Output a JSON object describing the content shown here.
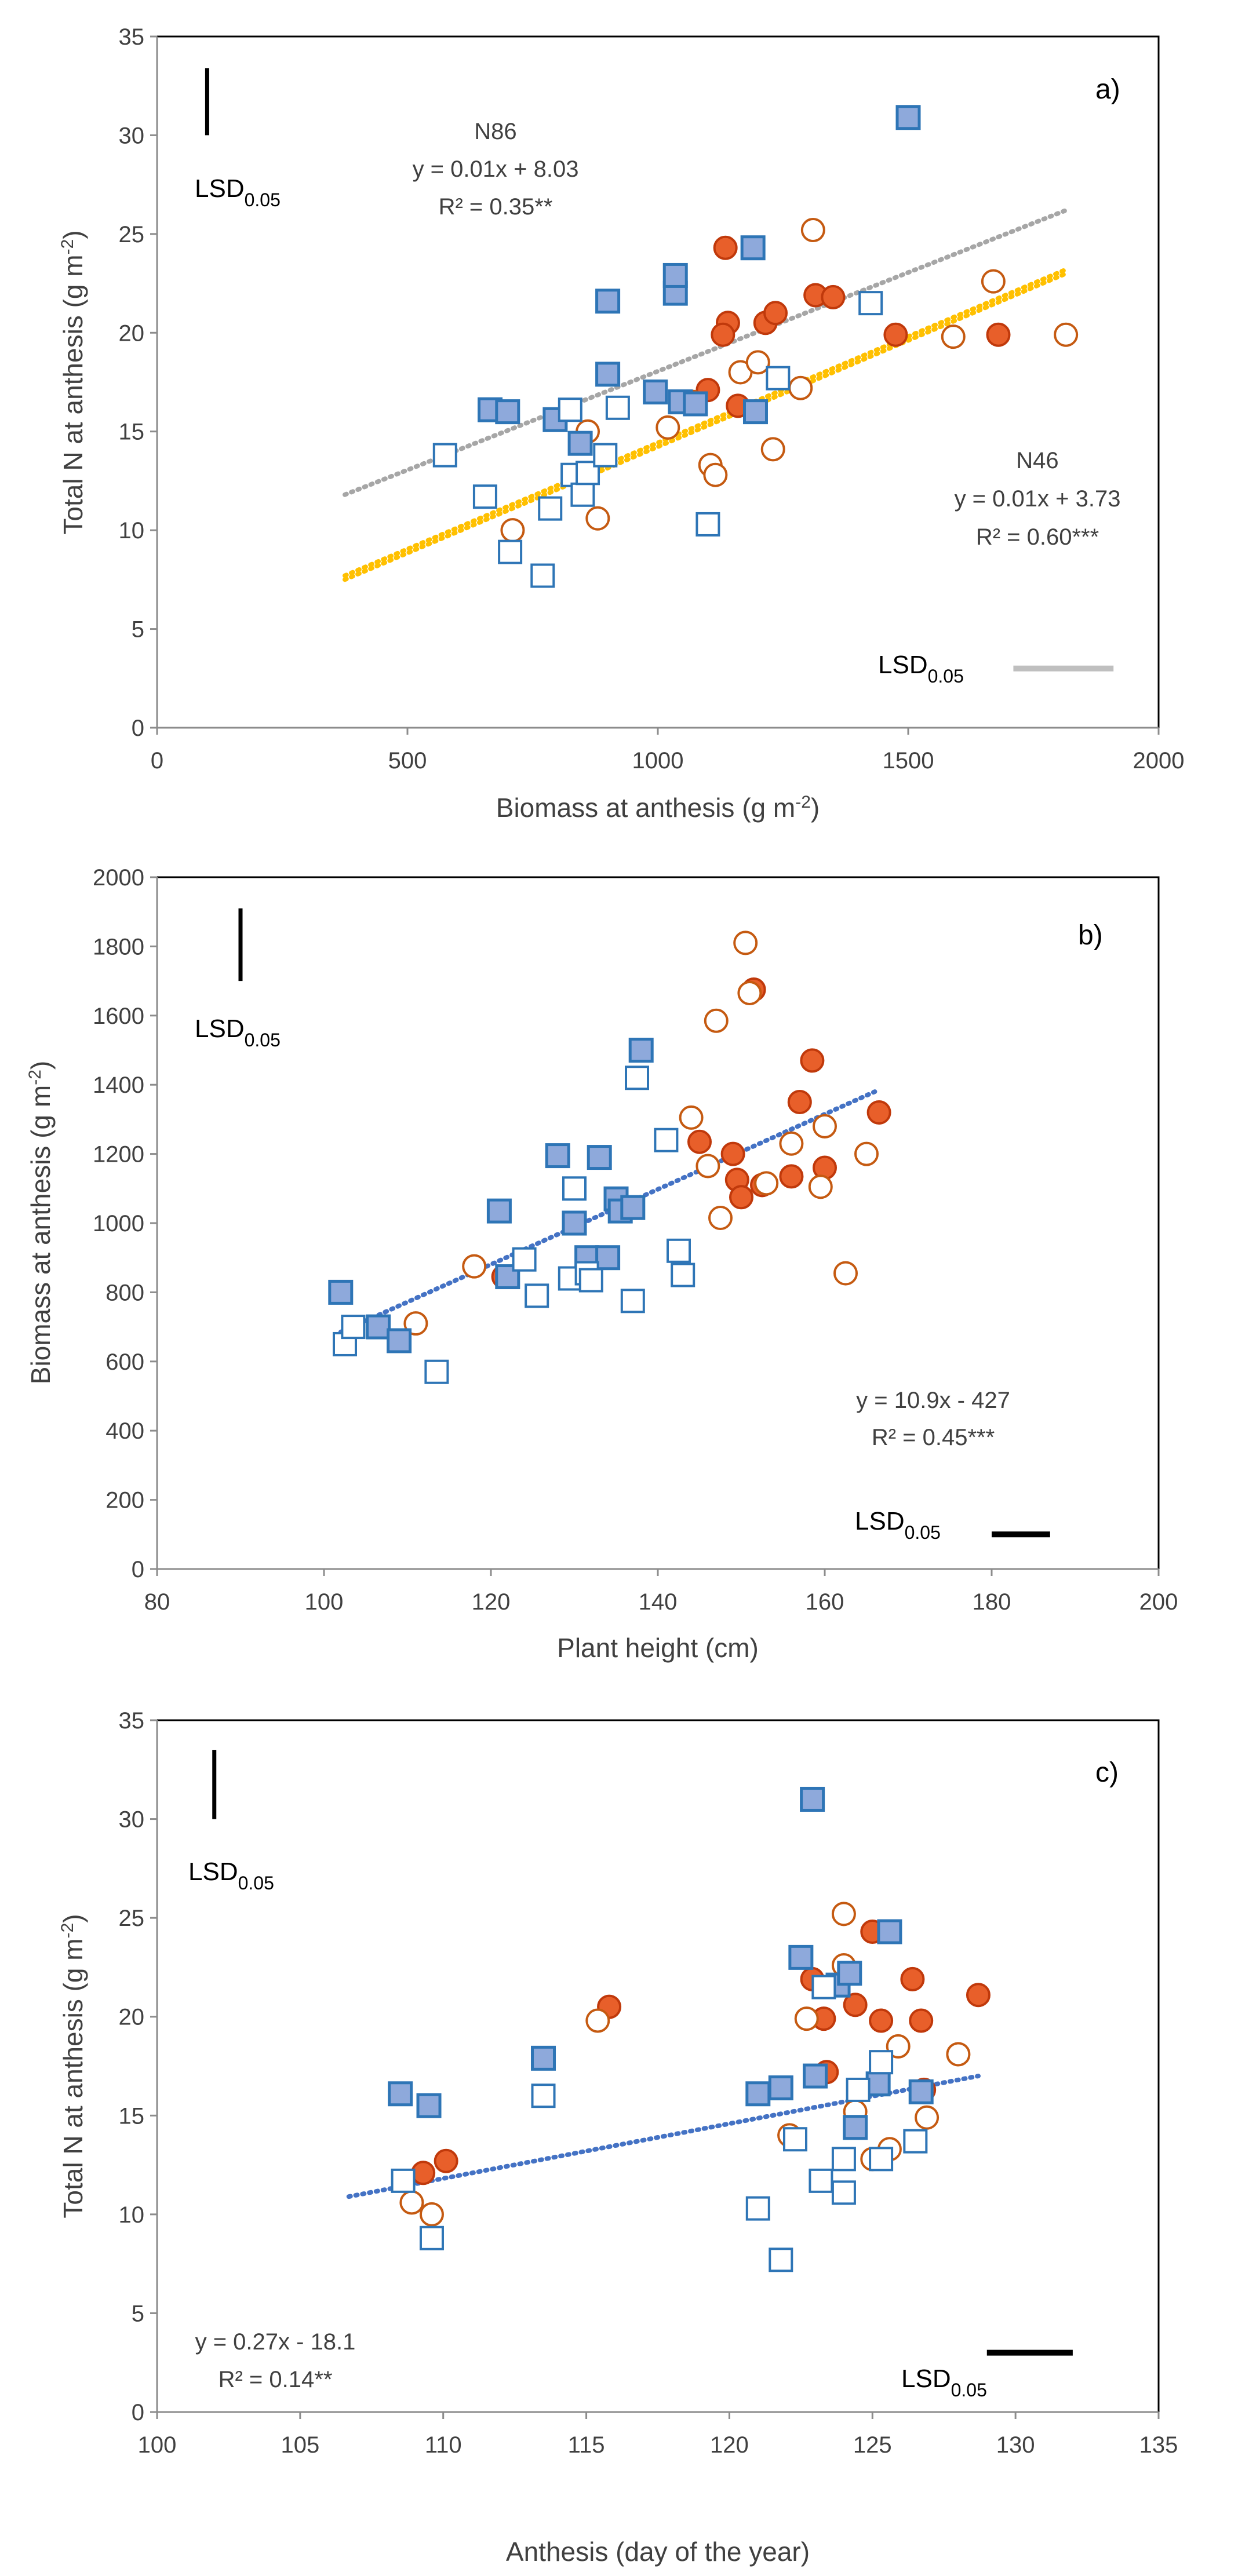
{
  "colors": {
    "red_fill": "#E85F2A",
    "red_stroke": "#C0390B",
    "red_open": "#C55A11",
    "blue_fill": "#8EA9DB",
    "blue_stroke": "#2E75B6",
    "blue_open": "#2E75B6",
    "trend_blue": "#4472C4",
    "trend_grey": "#A6A6A6",
    "trend_yellow": "#FFC000",
    "lsd_grey": "#BFBFBF"
  },
  "lsd": {
    "main": "LSD",
    "sub": "0.05"
  },
  "chart_data": [
    {
      "type": "scatter",
      "panel_label": "a)",
      "xlabel": "Biomass at anthesis (g m",
      "xlabel_sup": "-2",
      "xlabel_end": ")",
      "ylabel": "Total N at anthesis (g m",
      "ylabel_sup": "-2",
      "ylabel_end": ")",
      "xlim": [
        0,
        2000
      ],
      "ylim": [
        0,
        35
      ],
      "xticks": [
        0,
        500,
        1000,
        1500,
        2000
      ],
      "yticks": [
        0,
        5,
        10,
        15,
        20,
        25,
        30,
        35
      ],
      "annotations": [
        {
          "lines": [
            "N86",
            "y = 0.01x + 8.03",
            "R² = 0.35**"
          ]
        },
        {
          "lines": [
            "N46",
            "y = 0.01x + 3.73",
            "R² = 0.60***"
          ]
        }
      ],
      "trendlines": [
        {
          "color": "trend_grey",
          "x": [
            375,
            1815
          ],
          "y": [
            11.8,
            26.2
          ]
        },
        {
          "color": "trend_yellow",
          "x": [
            375,
            1815
          ],
          "y": [
            7.7,
            23.2
          ]
        },
        {
          "color": "trend_yellow",
          "x": [
            375,
            1815
          ],
          "y": [
            7.5,
            23.0
          ]
        }
      ],
      "lsd_vertical": {
        "x": 100,
        "y": [
          30.0,
          33.4
        ]
      },
      "lsd_horizontal": {
        "x": [
          1710,
          1910
        ],
        "y": 3.0
      },
      "series": [
        {
          "marker": "circle",
          "style": "red_filled",
          "points": [
            [
              1135,
              24.3
            ],
            [
              1140,
              20.5
            ],
            [
              1130,
              19.9
            ],
            [
              1100,
              17.1
            ],
            [
              1160,
              16.3
            ],
            [
              1215,
              20.5
            ],
            [
              1235,
              21.0
            ],
            [
              1315,
              21.9
            ],
            [
              1350,
              21.8
            ],
            [
              1475,
              19.9
            ],
            [
              1680,
              19.9
            ]
          ]
        },
        {
          "marker": "circle",
          "style": "red_open",
          "points": [
            [
              710,
              10.0
            ],
            [
              860,
              15.0
            ],
            [
              880,
              10.6
            ],
            [
              1020,
              15.2
            ],
            [
              1070,
              16.5
            ],
            [
              1105,
              13.3
            ],
            [
              1115,
              12.8
            ],
            [
              1165,
              18.0
            ],
            [
              1200,
              18.5
            ],
            [
              1230,
              14.1
            ],
            [
              1285,
              17.2
            ],
            [
              1310,
              25.2
            ],
            [
              1590,
              19.8
            ],
            [
              1670,
              22.6
            ],
            [
              1815,
              19.9
            ]
          ]
        },
        {
          "marker": "square",
          "style": "blue_filled",
          "points": [
            [
              665,
              16.1
            ],
            [
              700,
              16.0
            ],
            [
              795,
              15.6
            ],
            [
              845,
              14.4
            ],
            [
              900,
              21.6
            ],
            [
              900,
              17.9
            ],
            [
              995,
              17.0
            ],
            [
              1035,
              22.0
            ],
            [
              1035,
              22.9
            ],
            [
              1045,
              16.5
            ],
            [
              1075,
              16.4
            ],
            [
              1190,
              24.3
            ],
            [
              1195,
              16.0
            ],
            [
              1500,
              30.9
            ]
          ]
        },
        {
          "marker": "square",
          "style": "blue_open",
          "points": [
            [
              575,
              13.8
            ],
            [
              655,
              11.7
            ],
            [
              705,
              8.9
            ],
            [
              770,
              7.7
            ],
            [
              785,
              11.1
            ],
            [
              825,
              16.1
            ],
            [
              830,
              12.8
            ],
            [
              850,
              11.8
            ],
            [
              860,
              12.9
            ],
            [
              895,
              13.8
            ],
            [
              920,
              16.2
            ],
            [
              1100,
              10.3
            ],
            [
              1240,
              17.7
            ],
            [
              1425,
              21.5
            ]
          ]
        }
      ]
    },
    {
      "type": "scatter",
      "panel_label": "b)",
      "xlabel": "Plant height (cm)",
      "ylabel": "Biomass at anthesis (g m",
      "ylabel_sup": "-2",
      "ylabel_end": ")",
      "xlim": [
        80,
        200
      ],
      "ylim": [
        0,
        2000
      ],
      "xticks": [
        80,
        100,
        120,
        140,
        160,
        180,
        200
      ],
      "yticks": [
        0,
        200,
        400,
        600,
        800,
        1000,
        1200,
        1400,
        1600,
        1800,
        2000
      ],
      "annotations": [
        {
          "lines": [
            "y = 10.9x - 427",
            "R² = 0.45***"
          ]
        }
      ],
      "trendlines": [
        {
          "color": "trend_blue",
          "x": [
            102,
            166
          ],
          "y": [
            685,
            1380
          ]
        }
      ],
      "lsd_vertical": {
        "x": 90,
        "y": [
          1700,
          1910
        ]
      },
      "lsd_horizontal": {
        "x": [
          180,
          187
        ],
        "y": 100
      },
      "series": [
        {
          "marker": "circle",
          "style": "red_filled",
          "points": [
            [
              121.5,
              845
            ],
            [
              145,
              1235
            ],
            [
              149,
              1200
            ],
            [
              149.5,
              1125
            ],
            [
              150,
              1075
            ],
            [
              151.5,
              1675
            ],
            [
              152.5,
              1110
            ],
            [
              156,
              1135
            ],
            [
              157,
              1350
            ],
            [
              158.5,
              1470
            ],
            [
              160,
              1160
            ],
            [
              166.5,
              1320
            ]
          ]
        },
        {
          "marker": "circle",
          "style": "red_open",
          "points": [
            [
              111,
              710
            ],
            [
              118,
              875
            ],
            [
              144,
              1305
            ],
            [
              146,
              1165
            ],
            [
              147,
              1585
            ],
            [
              147.5,
              1015
            ],
            [
              150.5,
              1810
            ],
            [
              151,
              1665
            ],
            [
              153,
              1115
            ],
            [
              156,
              1230
            ],
            [
              159.5,
              1105
            ],
            [
              160,
              1280
            ],
            [
              162.5,
              855
            ],
            [
              165,
              1200
            ]
          ]
        },
        {
          "marker": "square",
          "style": "blue_filled",
          "points": [
            [
              102,
              800
            ],
            [
              106.5,
              700
            ],
            [
              109,
              660
            ],
            [
              121,
              1035
            ],
            [
              122,
              845
            ],
            [
              128,
              1195
            ],
            [
              130,
              1000
            ],
            [
              131.5,
              900
            ],
            [
              133,
              1190
            ],
            [
              134,
              900
            ],
            [
              135,
              1070
            ],
            [
              135.5,
              1035
            ],
            [
              137,
              1045
            ],
            [
              138,
              1500
            ]
          ]
        },
        {
          "marker": "square",
          "style": "blue_open",
          "points": [
            [
              102.5,
              650
            ],
            [
              103.5,
              700
            ],
            [
              113.5,
              570
            ],
            [
              124,
              895
            ],
            [
              125.5,
              790
            ],
            [
              129.5,
              840
            ],
            [
              130,
              1100
            ],
            [
              131.5,
              855
            ],
            [
              132,
              835
            ],
            [
              137,
              775
            ],
            [
              137.5,
              1420
            ],
            [
              141,
              1240
            ],
            [
              142.5,
              920
            ],
            [
              143,
              850
            ]
          ]
        }
      ]
    },
    {
      "type": "scatter",
      "panel_label": "c)",
      "xlabel": "Anthesis (day of the year)",
      "ylabel": "Total N at anthesis (g m",
      "ylabel_sup": "-2",
      "ylabel_end": ")",
      "xlim": [
        100,
        135
      ],
      "ylim": [
        0,
        35
      ],
      "xticks": [
        100,
        105,
        110,
        115,
        120,
        125,
        130,
        135
      ],
      "yticks": [
        0,
        5,
        10,
        15,
        20,
        25,
        30,
        35
      ],
      "annotations": [
        {
          "lines": [
            "y = 0.27x - 18.1",
            "R² = 0.14**"
          ]
        }
      ],
      "trendlines": [
        {
          "color": "trend_blue",
          "x": [
            106.7,
            128.7
          ],
          "y": [
            10.9,
            17.0
          ]
        }
      ],
      "lsd_vertical": {
        "x": 102,
        "y": [
          30.0,
          33.5
        ]
      },
      "lsd_horizontal": {
        "x": [
          129,
          132
        ],
        "y": 3.0
      },
      "series": [
        {
          "marker": "circle",
          "style": "red_filled",
          "points": [
            [
              109.3,
              12.1
            ],
            [
              110.1,
              12.7
            ],
            [
              115.8,
              20.5
            ],
            [
              122.9,
              21.9
            ],
            [
              123.3,
              19.9
            ],
            [
              123.4,
              17.2
            ],
            [
              124.4,
              20.6
            ],
            [
              125.0,
              24.3
            ],
            [
              125.3,
              19.8
            ],
            [
              126.4,
              21.9
            ],
            [
              126.7,
              19.8
            ],
            [
              126.8,
              16.3
            ],
            [
              128.7,
              21.1
            ]
          ]
        },
        {
          "marker": "circle",
          "style": "red_open",
          "points": [
            [
              108.9,
              10.6
            ],
            [
              109.6,
              10.0
            ],
            [
              115.4,
              19.8
            ],
            [
              122.1,
              14.0
            ],
            [
              122.7,
              19.9
            ],
            [
              124.0,
              25.2
            ],
            [
              124.0,
              22.6
            ],
            [
              124.4,
              15.2
            ],
            [
              125.0,
              12.8
            ],
            [
              125.6,
              13.3
            ],
            [
              125.9,
              18.5
            ],
            [
              126.9,
              14.9
            ],
            [
              128.0,
              18.1
            ]
          ]
        },
        {
          "marker": "square",
          "style": "blue_filled",
          "points": [
            [
              108.5,
              16.1
            ],
            [
              109.5,
              15.5
            ],
            [
              113.5,
              17.9
            ],
            [
              121.0,
              16.1
            ],
            [
              121.8,
              16.4
            ],
            [
              122.5,
              23.0
            ],
            [
              122.9,
              31.0
            ],
            [
              123.0,
              17.0
            ],
            [
              123.8,
              21.6
            ],
            [
              124.2,
              22.2
            ],
            [
              124.4,
              14.4
            ],
            [
              125.2,
              16.6
            ],
            [
              125.6,
              24.3
            ],
            [
              126.7,
              16.2
            ]
          ]
        },
        {
          "marker": "square",
          "style": "blue_open",
          "points": [
            [
              108.6,
              11.7
            ],
            [
              109.6,
              8.8
            ],
            [
              113.5,
              16.0
            ],
            [
              121.0,
              10.3
            ],
            [
              121.8,
              7.7
            ],
            [
              122.3,
              13.8
            ],
            [
              123.2,
              11.7
            ],
            [
              123.3,
              21.5
            ],
            [
              124.0,
              11.1
            ],
            [
              124.0,
              12.8
            ],
            [
              124.5,
              16.3
            ],
            [
              125.3,
              12.8
            ],
            [
              125.3,
              17.7
            ],
            [
              126.5,
              13.7
            ]
          ]
        }
      ]
    }
  ]
}
